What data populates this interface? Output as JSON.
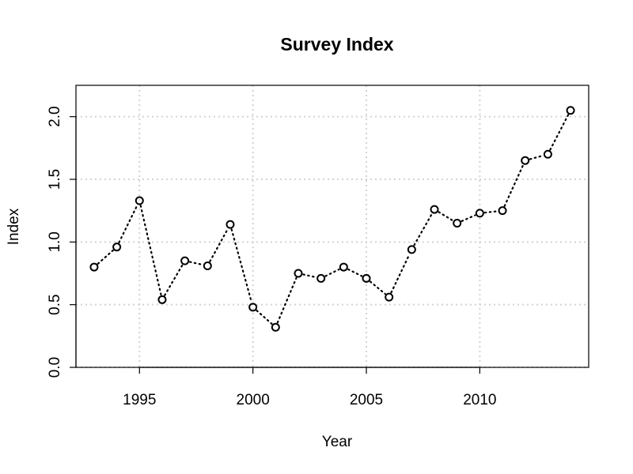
{
  "chart_data": {
    "type": "line",
    "title": "Survey Index",
    "xlabel": "Year",
    "ylabel": "Index",
    "x": [
      1993,
      1994,
      1995,
      1996,
      1997,
      1998,
      1999,
      2000,
      2001,
      2002,
      2003,
      2004,
      2005,
      2006,
      2007,
      2008,
      2009,
      2010,
      2011,
      2012,
      2013,
      2014
    ],
    "series": [
      {
        "values": [
          0.8,
          0.96,
          1.33,
          0.54,
          0.85,
          0.81,
          1.14,
          0.48,
          0.32,
          0.75,
          0.71,
          0.8,
          0.71,
          0.56,
          0.94,
          1.26,
          1.15,
          1.23,
          1.25,
          1.65,
          1.7,
          2.05
        ],
        "line_style": "dotted",
        "marker": "open-circle",
        "color": "#000000"
      }
    ],
    "xlim": [
      1992.2,
      2014.8
    ],
    "ylim": [
      0,
      2.25
    ],
    "x_ticks": [
      1995,
      2000,
      2005,
      2010
    ],
    "y_ticks": [
      0.0,
      0.5,
      1.0,
      1.5,
      2.0
    ],
    "x_tick_labels": [
      "1995",
      "2000",
      "2005",
      "2010"
    ],
    "y_tick_labels": [
      "0.0",
      "0.5",
      "1.0",
      "1.5",
      "2.0"
    ],
    "grid": true,
    "grid_color": "#d3d3d3"
  }
}
